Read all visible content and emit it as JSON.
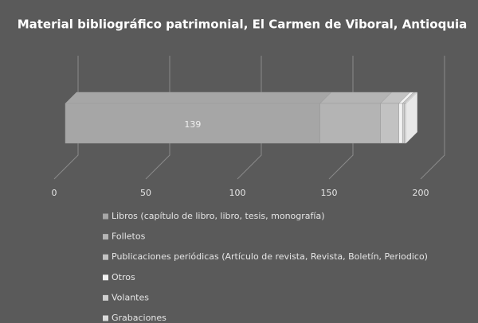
{
  "chart_data": {
    "type": "stacked-bar-3d",
    "title": "Material bibliográfico patrimonial, El Carmen de Viboral, Antioquia",
    "orientation": "horizontal",
    "series": [
      {
        "name": "Libros (capítulo de libro, libro, tesis, monografía)",
        "color": "#a6a6a6",
        "values": [
          139
        ]
      },
      {
        "name": "Folletos",
        "color": "#b4b4b4",
        "values": [
          33
        ]
      },
      {
        "name": "Publicaciones periódicas (Artículo de revista, Revista, Boletín, Periodico)",
        "color": "#c2c2c2",
        "values": [
          10
        ]
      },
      {
        "name": "Otros",
        "color": "#f2f2f2",
        "values": [
          2
        ]
      },
      {
        "name": "Volantes",
        "color": "#cfcfcf",
        "values": [
          1
        ]
      },
      {
        "name": "Grabaciones",
        "color": "#dadada",
        "values": [
          1
        ]
      }
    ],
    "xlim": [
      0,
      200
    ],
    "xticks": [
      0,
      50,
      100,
      150,
      200
    ],
    "grid": true
  }
}
